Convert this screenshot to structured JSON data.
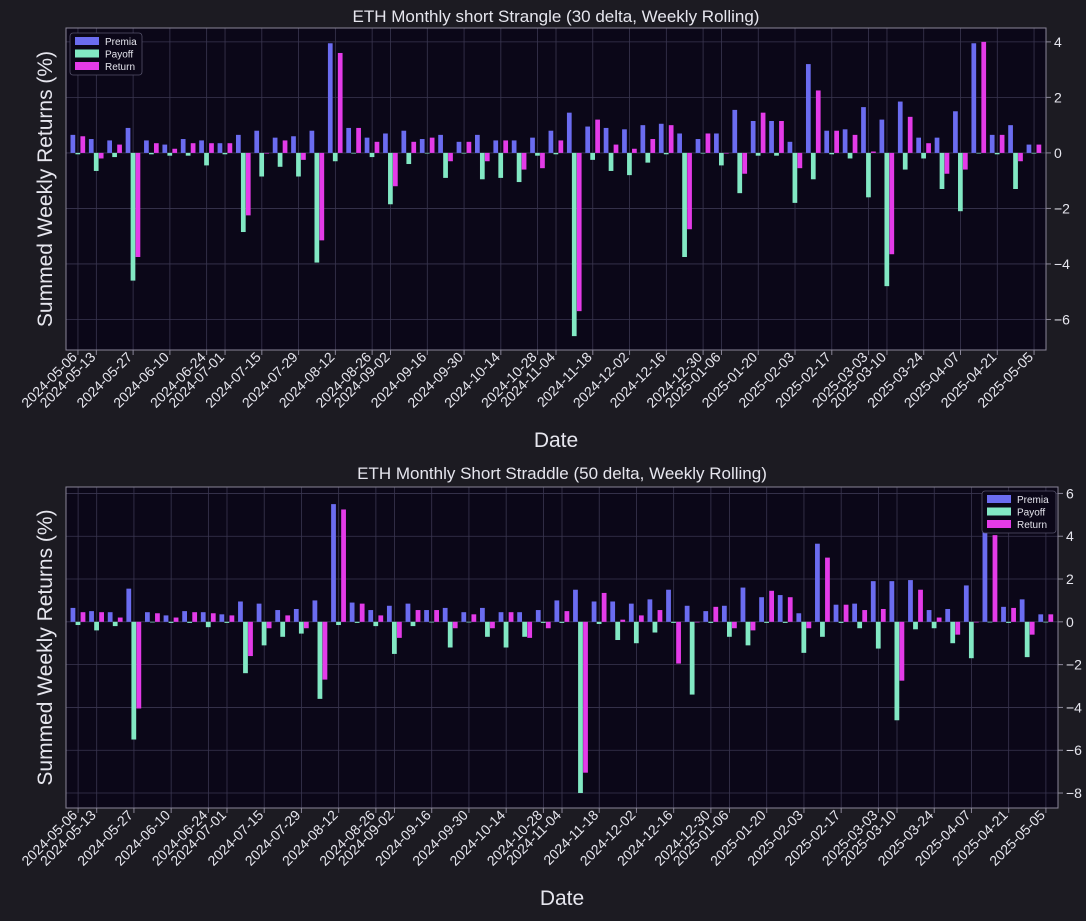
{
  "theme": {
    "background": "#1c1b22",
    "plot_background": "#0b0718",
    "grid": "#3a3650",
    "axis": "#8a8698",
    "text": "#e6e6ee",
    "colors": {
      "Premia": "#6b6cf0",
      "Payoff": "#82e8c4",
      "Return": "#e43be8"
    }
  },
  "chart_data": [
    {
      "type": "bar",
      "title": "ETH Monthly short Strangle (30 delta, Weekly Rolling)",
      "xlabel": "Date",
      "ylabel": "Summed Weekly Returns (%)",
      "ylim": [
        -7.1,
        4.5
      ],
      "yticks": [
        -6,
        -4,
        -2,
        0,
        2,
        4
      ],
      "y_axis_side": "right",
      "legend": "top-left",
      "grid": true,
      "tick_labels": [
        "2024-05-06",
        "2024-05-13",
        "2024-05-27",
        "2024-06-10",
        "2024-06-24",
        "2024-07-01",
        "2024-07-15",
        "2024-07-29",
        "2024-08-12",
        "2024-08-26",
        "2024-09-02",
        "2024-09-16",
        "2024-09-30",
        "2024-10-14",
        "2024-10-28",
        "2024-11-04",
        "2024-11-18",
        "2024-12-02",
        "2024-12-16",
        "2024-12-30",
        "2025-01-06",
        "2025-01-20",
        "2025-02-03",
        "2025-02-17",
        "2025-03-03",
        "2025-03-10",
        "2025-03-24",
        "2025-04-07",
        "2025-04-21",
        "2025-05-05"
      ],
      "tick_positions": [
        0,
        1,
        3,
        5,
        7,
        8,
        10,
        12,
        14,
        16,
        17,
        19,
        21,
        23,
        25,
        26,
        28,
        30,
        32,
        34,
        35,
        37,
        39,
        41,
        43,
        44,
        46,
        48,
        50,
        52
      ],
      "series": [
        {
          "name": "Premia",
          "values": [
            0.65,
            0.5,
            0.45,
            0.9,
            0.45,
            0.3,
            0.5,
            0.45,
            0.35,
            0.65,
            0.8,
            0.55,
            0.6,
            0.8,
            3.95,
            0.9,
            0.55,
            0.7,
            0.8,
            0.5,
            0.65,
            0.4,
            0.65,
            0.45,
            0.45,
            0.55,
            0.8,
            1.45,
            0.95,
            0.9,
            0.85,
            1.0,
            1.05,
            0.7,
            0.5,
            0.7,
            1.55,
            1.15,
            1.15,
            0.4,
            3.2,
            0.8,
            0.85,
            1.65,
            1.2,
            1.85,
            0.55,
            0.55,
            1.5,
            3.95,
            0.65,
            1.0,
            0.3
          ]
        },
        {
          "name": "Payoff",
          "values": [
            -0.05,
            -0.65,
            -0.15,
            -4.6,
            -0.05,
            -0.1,
            -0.1,
            -0.45,
            -0.05,
            -2.85,
            -0.85,
            -0.5,
            -0.85,
            -3.95,
            -0.3,
            0.0,
            -0.15,
            -1.85,
            -0.4,
            0.0,
            -0.9,
            0.0,
            -0.95,
            -0.9,
            -1.05,
            -0.1,
            -0.05,
            -6.6,
            -0.25,
            -0.65,
            -0.8,
            -0.35,
            -0.05,
            -3.75,
            0.0,
            -0.45,
            -1.45,
            -0.1,
            -0.1,
            -1.8,
            -0.95,
            -0.05,
            -0.2,
            -1.6,
            -4.8,
            -0.6,
            -0.2,
            -1.3,
            -2.1,
            0.0,
            -0.05,
            -1.3,
            0.0
          ]
        },
        {
          "name": "Return",
          "values": [
            0.6,
            -0.2,
            0.3,
            -3.75,
            0.35,
            0.15,
            0.35,
            0.35,
            0.35,
            -2.25,
            0.0,
            0.45,
            -0.25,
            -3.15,
            3.6,
            0.9,
            0.4,
            -1.2,
            0.4,
            0.55,
            -0.3,
            0.4,
            -0.3,
            0.45,
            -0.6,
            -0.55,
            0.45,
            -5.7,
            1.2,
            0.3,
            0.15,
            0.5,
            1.0,
            -2.75,
            0.7,
            0.0,
            -0.75,
            1.45,
            1.15,
            -0.55,
            2.25,
            0.8,
            0.65,
            0.05,
            -3.65,
            1.3,
            0.35,
            -0.75,
            -0.6,
            4.0,
            0.65,
            -0.3,
            0.3
          ]
        }
      ]
    },
    {
      "type": "bar",
      "title": "ETH Monthly Short Straddle (50 delta, Weekly Rolling)",
      "xlabel": "Date",
      "ylabel": "Summed Weekly Returns (%)",
      "ylim": [
        -8.7,
        6.3
      ],
      "yticks": [
        -8,
        -6,
        -4,
        -2,
        0,
        2,
        4,
        6
      ],
      "y_axis_side": "right",
      "legend": "top-right",
      "grid": true,
      "tick_labels": [
        "2024-05-06",
        "2024-05-13",
        "2024-05-27",
        "2024-06-10",
        "2024-06-24",
        "2024-07-01",
        "2024-07-15",
        "2024-07-29",
        "2024-08-12",
        "2024-08-26",
        "2024-09-02",
        "2024-09-16",
        "2024-09-30",
        "2024-10-14",
        "2024-10-28",
        "2024-11-04",
        "2024-11-18",
        "2024-12-02",
        "2024-12-16",
        "2024-12-30",
        "2025-01-06",
        "2025-01-20",
        "2025-02-03",
        "2025-02-17",
        "2025-03-03",
        "2025-03-10",
        "2025-03-24",
        "2025-04-07",
        "2025-04-21",
        "2025-05-05"
      ],
      "tick_positions": [
        0,
        1,
        3,
        5,
        7,
        8,
        10,
        12,
        14,
        16,
        17,
        19,
        21,
        23,
        25,
        26,
        28,
        30,
        32,
        34,
        35,
        37,
        39,
        41,
        43,
        44,
        46,
        48,
        50,
        52
      ],
      "series": [
        {
          "name": "Premia",
          "values": [
            0.65,
            0.5,
            0.45,
            1.55,
            0.45,
            0.3,
            0.5,
            0.45,
            0.35,
            0.95,
            0.85,
            0.55,
            0.6,
            1.0,
            5.5,
            0.9,
            0.55,
            0.75,
            0.85,
            0.55,
            0.65,
            0.45,
            0.65,
            0.45,
            0.45,
            0.55,
            1.0,
            1.5,
            0.95,
            0.95,
            0.85,
            1.05,
            1.5,
            0.75,
            0.5,
            0.75,
            1.6,
            1.15,
            1.25,
            0.4,
            3.65,
            0.8,
            0.85,
            1.9,
            1.9,
            1.95,
            0.55,
            0.6,
            1.7,
            4.5,
            0.7,
            1.05,
            0.35
          ]
        },
        {
          "name": "Payoff",
          "values": [
            -0.15,
            -0.4,
            -0.2,
            -5.5,
            0.0,
            -0.05,
            -0.05,
            -0.25,
            -0.05,
            -2.4,
            -1.1,
            -0.7,
            -0.55,
            -3.6,
            -0.15,
            -0.05,
            -0.2,
            -1.5,
            -0.2,
            0.0,
            -1.2,
            0.0,
            -0.7,
            -1.2,
            -0.7,
            -0.05,
            -0.05,
            -8.0,
            -0.1,
            -0.85,
            -1.0,
            -0.5,
            -0.05,
            -3.4,
            -0.05,
            -0.7,
            -1.1,
            -0.05,
            -0.05,
            -1.45,
            -0.7,
            -0.05,
            -0.3,
            -1.25,
            -4.6,
            -0.35,
            -0.3,
            -1.0,
            -1.7,
            0.0,
            -0.05,
            -1.65,
            0.0
          ]
        },
        {
          "name": "Return",
          "values": [
            0.45,
            0.45,
            0.2,
            -4.05,
            0.4,
            0.2,
            0.45,
            0.4,
            0.3,
            -1.6,
            -0.3,
            0.3,
            -0.3,
            -2.7,
            5.25,
            0.85,
            0.3,
            -0.75,
            0.55,
            0.55,
            -0.3,
            0.35,
            -0.3,
            0.45,
            -0.75,
            -0.3,
            0.5,
            -7.05,
            1.35,
            0.1,
            0.3,
            0.55,
            -1.95,
            0.0,
            0.7,
            -0.3,
            -0.4,
            1.45,
            1.15,
            -0.3,
            3.0,
            0.8,
            0.55,
            0.6,
            -2.75,
            1.5,
            0.2,
            -0.6,
            0.0,
            4.05,
            0.65,
            -0.6,
            0.35
          ]
        }
      ]
    }
  ]
}
